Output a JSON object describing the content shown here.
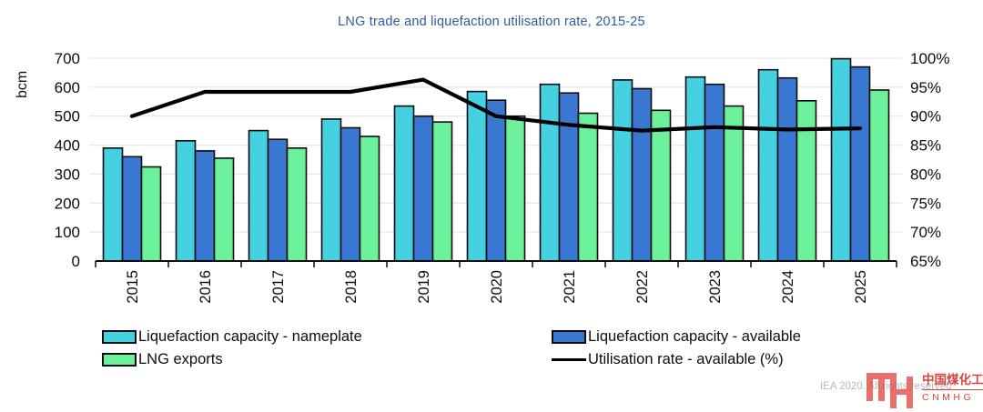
{
  "title": "LNG trade and liquefaction utilisation rate, 2015-25",
  "left_axis": {
    "label": "bcm",
    "ticks": [
      "700",
      "600",
      "500",
      "400",
      "300",
      "200",
      "100",
      "0"
    ]
  },
  "right_axis": {
    "ticks": [
      "100%",
      "95%",
      "90%",
      "85%",
      "80%",
      "75%",
      "70%",
      "65%"
    ]
  },
  "chart_data": {
    "type": "bar",
    "subtype": "grouped-bars-with-line",
    "title": "LNG trade and liquefaction utilisation rate, 2015-25",
    "xlabel": "",
    "ylabel": "bcm",
    "ylabel_right": "%",
    "ylim_left": [
      0,
      700
    ],
    "ylim_right": [
      65,
      100
    ],
    "grid": "horizontal",
    "legend_position": "bottom",
    "categories": [
      "2015",
      "2016",
      "2017",
      "2018",
      "2019",
      "2020",
      "2021",
      "2022",
      "2023",
      "2024",
      "2025"
    ],
    "series": [
      {
        "name": "Liquefaction capacity - nameplate",
        "type": "bar",
        "axis": "left",
        "color": "#46d1e2",
        "values": [
          390,
          415,
          450,
          490,
          535,
          585,
          610,
          625,
          635,
          660,
          698
        ]
      },
      {
        "name": "Liquefaction capacity - available",
        "type": "bar",
        "axis": "left",
        "color": "#3a77d1",
        "values": [
          360,
          380,
          420,
          460,
          500,
          555,
          580,
          595,
          610,
          632,
          670
        ]
      },
      {
        "name": "LNG exports",
        "type": "bar",
        "axis": "left",
        "color": "#6cf09a",
        "values": [
          325,
          355,
          390,
          430,
          480,
          500,
          510,
          520,
          535,
          553,
          590
        ]
      },
      {
        "name": "Utilisation rate - available (%)",
        "type": "line",
        "axis": "right",
        "color": "#000000",
        "values": [
          90,
          94.2,
          94.2,
          94.2,
          96.3,
          90,
          88.5,
          87.5,
          88.1,
          87.7,
          87.9
        ]
      }
    ]
  },
  "colors": {
    "title": "#2d5c9c",
    "gridline": "#e7e7e7",
    "axis": "#0d0d0d",
    "bar_outline": "#0d0d0d",
    "logo_red": "#d9453c"
  },
  "footer": {
    "copyright": "IEA 2020. All rights reserved",
    "logo": {
      "monogram": "MH",
      "cn": "中国煤化工",
      "en": "CNMHG"
    }
  }
}
